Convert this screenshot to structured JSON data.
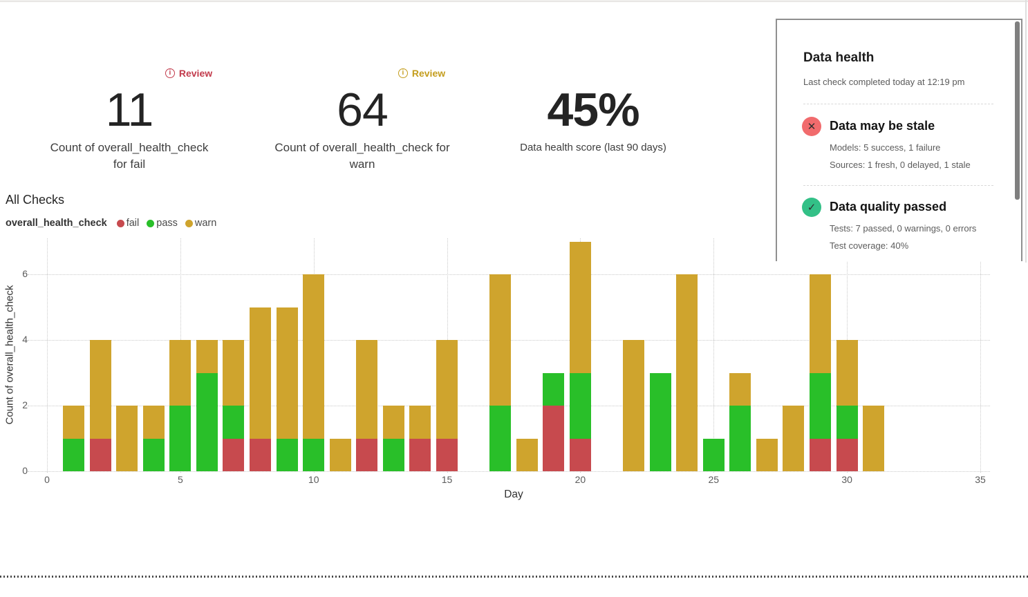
{
  "kpis": [
    {
      "review_label": "Review",
      "review_color": "#c23b4c",
      "value": "11",
      "label_line1": "Count of overall_health_check",
      "label_line2": "for fail"
    },
    {
      "review_label": "Review",
      "review_color": "#c49d1d",
      "value": "64",
      "label_line1": "Count of overall_health_check for",
      "label_line2": "warn"
    },
    {
      "value": "45%",
      "label_line1": "Data health score (last 90 days)",
      "label_line2": ""
    }
  ],
  "section": {
    "title": "All Checks",
    "legend_title": "overall_health_check",
    "legend": [
      {
        "label": "fail",
        "color": "#c74a4e"
      },
      {
        "label": "pass",
        "color": "#29bf29"
      },
      {
        "label": "warn",
        "color": "#cfa42d"
      }
    ]
  },
  "chart_data": {
    "type": "bar",
    "stacked": true,
    "title": "All Checks",
    "xlabel": "Day",
    "ylabel": "Count of overall_health_check",
    "xlim": [
      0,
      35
    ],
    "ylim": [
      0,
      7
    ],
    "x_ticks": [
      0,
      5,
      10,
      15,
      20,
      25,
      30,
      35
    ],
    "y_ticks": [
      0,
      2,
      4,
      6
    ],
    "grid": "dotted",
    "legend_position": "top-left",
    "series_order": [
      "fail",
      "pass",
      "warn"
    ],
    "colors": {
      "fail": "#c74a4e",
      "pass": "#29bf29",
      "warn": "#cfa42d"
    },
    "totals": {
      "fail": 11,
      "warn": 64
    },
    "days": [
      {
        "day": 1,
        "fail": 0,
        "pass": 1,
        "warn": 1
      },
      {
        "day": 2,
        "fail": 1,
        "pass": 0,
        "warn": 3
      },
      {
        "day": 3,
        "fail": 0,
        "pass": 0,
        "warn": 2
      },
      {
        "day": 4,
        "fail": 0,
        "pass": 1,
        "warn": 1
      },
      {
        "day": 5,
        "fail": 0,
        "pass": 2,
        "warn": 2
      },
      {
        "day": 6,
        "fail": 0,
        "pass": 3,
        "warn": 1
      },
      {
        "day": 7,
        "fail": 1,
        "pass": 1,
        "warn": 2
      },
      {
        "day": 8,
        "fail": 1,
        "pass": 0,
        "warn": 4
      },
      {
        "day": 9,
        "fail": 0,
        "pass": 1,
        "warn": 4
      },
      {
        "day": 10,
        "fail": 0,
        "pass": 1,
        "warn": 5
      },
      {
        "day": 11,
        "fail": 0,
        "pass": 0,
        "warn": 1
      },
      {
        "day": 12,
        "fail": 1,
        "pass": 0,
        "warn": 3
      },
      {
        "day": 13,
        "fail": 0,
        "pass": 1,
        "warn": 1
      },
      {
        "day": 14,
        "fail": 1,
        "pass": 0,
        "warn": 1
      },
      {
        "day": 15,
        "fail": 1,
        "pass": 0,
        "warn": 3
      },
      {
        "day": 16,
        "fail": 0,
        "pass": 0,
        "warn": 0
      },
      {
        "day": 17,
        "fail": 0,
        "pass": 2,
        "warn": 4
      },
      {
        "day": 18,
        "fail": 0,
        "pass": 0,
        "warn": 1
      },
      {
        "day": 19,
        "fail": 2,
        "pass": 1,
        "warn": 0
      },
      {
        "day": 20,
        "fail": 1,
        "pass": 2,
        "warn": 4
      },
      {
        "day": 21,
        "fail": 0,
        "pass": 0,
        "warn": 0
      },
      {
        "day": 22,
        "fail": 0,
        "pass": 0,
        "warn": 4
      },
      {
        "day": 23,
        "fail": 0,
        "pass": 3,
        "warn": 0
      },
      {
        "day": 24,
        "fail": 0,
        "pass": 0,
        "warn": 6
      },
      {
        "day": 25,
        "fail": 0,
        "pass": 1,
        "warn": 0
      },
      {
        "day": 26,
        "fail": 0,
        "pass": 2,
        "warn": 1
      },
      {
        "day": 27,
        "fail": 0,
        "pass": 0,
        "warn": 1
      },
      {
        "day": 28,
        "fail": 0,
        "pass": 0,
        "warn": 2
      },
      {
        "day": 29,
        "fail": 1,
        "pass": 2,
        "warn": 3
      },
      {
        "day": 30,
        "fail": 1,
        "pass": 1,
        "warn": 2
      },
      {
        "day": 31,
        "fail": 0,
        "pass": 0,
        "warn": 2
      }
    ]
  },
  "panel": {
    "title": "Data health",
    "subtitle": "Last check completed today at 12:19 pm",
    "sections": [
      {
        "icon": "✕",
        "icon_color": "#f16b6d",
        "heading": "Data may be stale",
        "rows": [
          "Models: 5 success, 1 failure",
          "Sources: 1 fresh, 0 delayed, 1 stale"
        ]
      },
      {
        "icon": "✓",
        "icon_color": "#33c087",
        "heading": "Data quality passed",
        "rows": [
          "Tests: 7 passed, 0 warnings, 0 errors",
          "Test coverage: 40%"
        ]
      }
    ]
  }
}
